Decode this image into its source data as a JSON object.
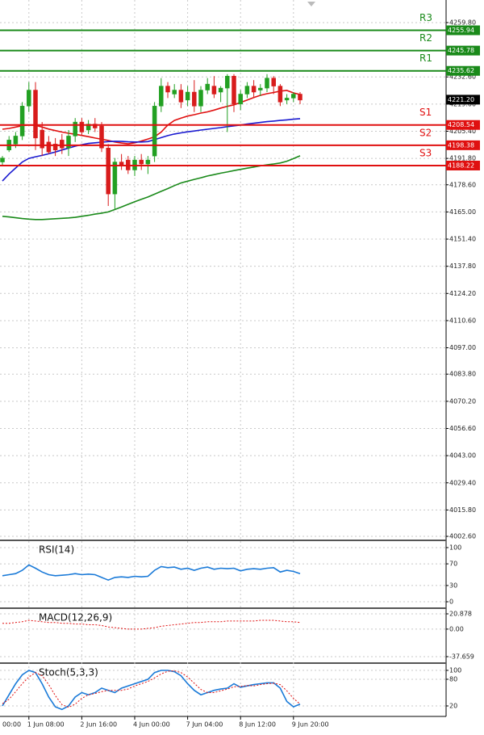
{
  "chart_data": [
    {
      "type": "candlestick",
      "categories": [
        null,
        null,
        null,
        null,
        "1 Jun 08:00",
        null,
        null,
        null,
        null,
        null,
        null,
        null,
        "2 Jun 16:00",
        null,
        null,
        null,
        null,
        null,
        null,
        null,
        "4 Jun 00:00",
        null,
        null,
        null,
        null,
        null,
        null,
        null,
        "7 Jun 04:00",
        null,
        null,
        null,
        null,
        null,
        null,
        null,
        "8 Jun 12:00",
        null,
        null,
        null,
        null,
        null,
        null,
        null,
        "9 Jun 20:00",
        null
      ],
      "edge_label": "00:00",
      "open": [
        4190,
        4196,
        4199,
        4203,
        4218,
        4226,
        4206,
        4200,
        4199,
        4201,
        4197,
        4203,
        4210,
        4206,
        4209,
        4208,
        4197,
        4174,
        4190,
        4191,
        4186,
        4191,
        4189,
        4193,
        4218,
        4228,
        4224,
        4226,
        4221,
        4225,
        4218,
        4226,
        4228,
        4225,
        4227,
        4233,
        4219,
        4224,
        4228,
        4226,
        4227,
        4232,
        4228,
        4221,
        4222,
        4224
      ],
      "high": [
        4193,
        4203,
        4205,
        4220,
        4230,
        4230,
        4210,
        4203,
        4202,
        4204,
        4206,
        4212,
        4212,
        4211,
        4212,
        4210,
        4199,
        4192,
        4194,
        4193,
        4193,
        4194,
        4193,
        4220,
        4232,
        4230,
        4229,
        4229,
        4228,
        4231,
        4228,
        4232,
        4233,
        4228,
        4234,
        4234,
        4226,
        4230,
        4231,
        4229,
        4234,
        4233,
        4229,
        4224,
        4225,
        4225
      ],
      "low": [
        4188,
        4195,
        4197,
        4201,
        4215,
        4196,
        4193,
        4194,
        4193,
        4194,
        4193,
        4200,
        4203,
        4204,
        4205,
        4195,
        4168,
        4166,
        4186,
        4184,
        4183,
        4186,
        4184,
        4190,
        4215,
        4222,
        4222,
        4217,
        4218,
        4215,
        4215,
        4224,
        4222,
        4220,
        4205,
        4215,
        4216,
        4222,
        4222,
        4223,
        4225,
        4224,
        4218,
        4219,
        4220,
        4219
      ],
      "close": [
        4192,
        4201,
        4203,
        4218,
        4226,
        4202,
        4197,
        4195,
        4196,
        4197,
        4203,
        4210,
        4205,
        4209,
        4207,
        4197,
        4174,
        4190,
        4188,
        4186,
        4191,
        4189,
        4191,
        4218,
        4228,
        4225,
        4226,
        4220,
        4225,
        4218,
        4226,
        4229,
        4224,
        4227,
        4233,
        4219,
        4224,
        4228,
        4225,
        4227,
        4232,
        4228,
        4220,
        4222,
        4224,
        4221
      ],
      "up_color": "#22a022",
      "down_color": "#d81c1c",
      "series": [
        {
          "color": "#e01010",
          "values": [
            4206.4,
            4206.8,
            4207.5,
            4208.2,
            4208.5,
            4208.4,
            4207.5,
            4206.5,
            4205.7,
            4205.0,
            4204.4,
            4203.9,
            4203.3,
            4202.7,
            4202.0,
            4201.4,
            4200.8,
            4200.0,
            4199.5,
            4199.1,
            4199.6,
            4200.5,
            4201.5,
            4202.6,
            4205.0,
            4208.5,
            4210.8,
            4212.0,
            4213.0,
            4213.7,
            4214.5,
            4215.1,
            4216.0,
            4217.0,
            4217.9,
            4218.6,
            4219.8,
            4221.0,
            4222.3,
            4223.4,
            4224.2,
            4224.8,
            4225.5,
            4225.8,
            4224.6,
            4223.8
          ]
        },
        {
          "color": "#1a1ad0",
          "values": [
            4180.5,
            4184,
            4187,
            4190,
            4191.8,
            4192.6,
            4193.3,
            4194.1,
            4195.0,
            4196.0,
            4197.0,
            4197.9,
            4198.7,
            4199.3,
            4199.6,
            4199.9,
            4200.2,
            4200.4,
            4200.3,
            4200.1,
            4200.0,
            4200.0,
            4200.2,
            4201.2,
            4202.2,
            4203.2,
            4204.0,
            4204.6,
            4205.1,
            4205.5,
            4206.0,
            4206.4,
            4206.8,
            4207.2,
            4207.7,
            4208.1,
            4208.5,
            4209.0,
            4209.4,
            4209.8,
            4210.2,
            4210.5,
            4210.8,
            4211.1,
            4211.4,
            4211.7
          ]
        },
        {
          "color": "#1a8a1a",
          "values": [
            4162.8,
            4162.5,
            4162.1,
            4161.7,
            4161.4,
            4161.2,
            4161.2,
            4161.4,
            4161.6,
            4161.8,
            4162.0,
            4162.3,
            4162.8,
            4163.3,
            4163.9,
            4164.4,
            4165.0,
            4166.2,
            4167.5,
            4168.8,
            4170.1,
            4171.3,
            4172.5,
            4173.9,
            4175.3,
            4176.7,
            4178.2,
            4179.5,
            4180.4,
            4181.3,
            4182.1,
            4183.0,
            4183.7,
            4184.4,
            4185.0,
            4185.7,
            4186.3,
            4186.9,
            4187.5,
            4188.1,
            4188.6,
            4189.0,
            4189.5,
            4190.4,
            4191.7,
            4193.1
          ]
        }
      ],
      "levels": [
        {
          "name": "R3",
          "value": 4255.94,
          "color": "#1a8a1a"
        },
        {
          "name": "R2",
          "value": 4245.78,
          "color": "#1a8a1a"
        },
        {
          "name": "R1",
          "value": 4235.62,
          "color": "#1a8a1a"
        },
        {
          "name": "S1",
          "value": 4208.54,
          "color": "#e01010"
        },
        {
          "name": "S2",
          "value": 4198.38,
          "color": "#e01010"
        },
        {
          "name": "S3",
          "value": 4188.22,
          "color": "#e01010"
        }
      ],
      "current_price": {
        "value": 4221.2,
        "label": "4221.20"
      },
      "ylim": [
        4001.0,
        4271.1
      ],
      "yticks": [
        {
          "value": 4259.8,
          "label": "4259.80"
        },
        {
          "value": 4232.6,
          "label": "4232.60"
        },
        {
          "value": 4219.0,
          "label": "4219.00"
        },
        {
          "value": 4205.4,
          "label": "4205.40"
        },
        {
          "value": 4191.8,
          "label": "4191.80"
        },
        {
          "value": 4178.6,
          "label": "4178.60"
        },
        {
          "value": 4165.0,
          "label": "4165.00"
        },
        {
          "value": 4151.4,
          "label": "4151.40"
        },
        {
          "value": 4137.8,
          "label": "4137.80"
        },
        {
          "value": 4124.2,
          "label": "4124.20"
        },
        {
          "value": 4110.6,
          "label": "4110.60"
        },
        {
          "value": 4097.0,
          "label": "4097.00"
        },
        {
          "value": 4083.8,
          "label": "4083.80"
        },
        {
          "value": 4070.2,
          "label": "4070.20"
        },
        {
          "value": 4056.6,
          "label": "4056.60"
        },
        {
          "value": 4043.0,
          "label": "4043.00"
        },
        {
          "value": 4029.4,
          "label": "4029.40"
        },
        {
          "value": 4015.8,
          "label": "4015.80"
        },
        {
          "value": 4002.6,
          "label": "4002.60"
        }
      ],
      "grid": true
    },
    {
      "type": "line",
      "title": "RSI(14)",
      "series": [
        {
          "color": "#1a7ad8",
          "dashed": false,
          "values": [
            48,
            50,
            52,
            58,
            68,
            62,
            55,
            50,
            48,
            49,
            50,
            52,
            50,
            51,
            50,
            45,
            40,
            45,
            46,
            45,
            47,
            46,
            47,
            58,
            65,
            63,
            64,
            60,
            62,
            58,
            62,
            64,
            60,
            62,
            61,
            62,
            57,
            60,
            61,
            60,
            62,
            63,
            55,
            58,
            56,
            52
          ]
        }
      ],
      "ylim": [
        -10.4,
        111.9
      ],
      "yticks": [
        100,
        70,
        30,
        0
      ],
      "grid": true
    },
    {
      "type": "line",
      "title": "MACD(12,26,9)",
      "series": [
        {
          "color": "#e01010",
          "dashed": true,
          "values": [
            8,
            8,
            9,
            10,
            12,
            11,
            10,
            9,
            9,
            8,
            8,
            7,
            7,
            6,
            6,
            5,
            3,
            2,
            1,
            0,
            0,
            0,
            1,
            2,
            4,
            5,
            6,
            7,
            8,
            9,
            9,
            10,
            10,
            10,
            11,
            11,
            11,
            11,
            11,
            12,
            12,
            12,
            11,
            10,
            10,
            9
          ]
        }
      ],
      "ylim": [
        -45.4,
        27.5
      ],
      "yticks": [
        20.878,
        {
          "value": 0,
          "label": "0.00"
        },
        -37.659
      ],
      "grid": true
    },
    {
      "type": "line",
      "title": "Stoch(5,3,3)",
      "series": [
        {
          "color": "#1a7ad8",
          "dashed": false,
          "values": [
            20,
            45,
            70,
            90,
            100,
            95,
            70,
            40,
            18,
            12,
            20,
            40,
            50,
            45,
            50,
            60,
            55,
            50,
            60,
            65,
            70,
            75,
            80,
            95,
            100,
            100,
            97,
            88,
            70,
            55,
            45,
            50,
            55,
            58,
            60,
            70,
            62,
            65,
            68,
            70,
            72,
            72,
            60,
            30,
            18,
            24
          ]
        },
        {
          "color": "#e01010",
          "dashed": true,
          "values": [
            25,
            35,
            52,
            70,
            85,
            95,
            88,
            68,
            43,
            23,
            17,
            24,
            37,
            45,
            48,
            52,
            55,
            55,
            55,
            58,
            65,
            70,
            75,
            83,
            92,
            98,
            99,
            95,
            85,
            71,
            57,
            50,
            50,
            54,
            58,
            63,
            64,
            66,
            65,
            68,
            70,
            71,
            68,
            54,
            37,
            24
          ]
        }
      ],
      "ylim": [
        -1.8,
        114.5
      ],
      "yticks": [
        100,
        80,
        20
      ],
      "grid": true
    }
  ]
}
